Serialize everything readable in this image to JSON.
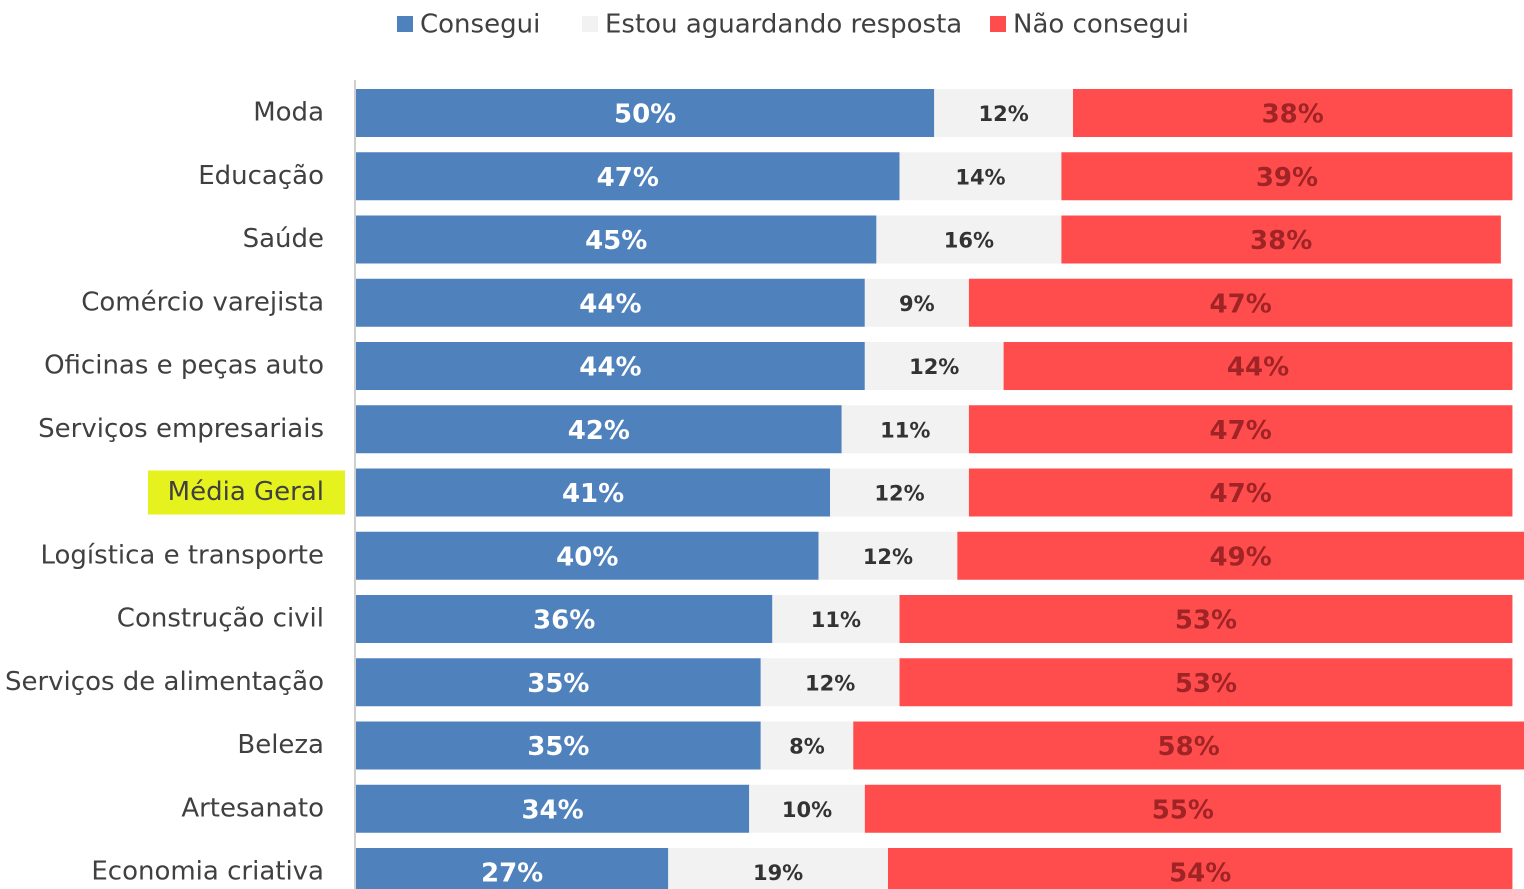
{
  "chart_data": {
    "type": "stacked-barh",
    "categories": [
      "Moda",
      "Educação",
      "Saúde",
      "Comércio varejista",
      "Oficinas e peças auto",
      "Serviços empresariais",
      "Média Geral",
      "Logística e transporte",
      "Construção civil",
      "Serviços de alimentação",
      "Beleza",
      "Artesanato",
      "Economia criativa"
    ],
    "series": [
      {
        "name": "Consegui",
        "color": "#4f81bd",
        "label_color": "#ffffff",
        "values": [
          50,
          47,
          45,
          44,
          44,
          42,
          41,
          40,
          36,
          35,
          35,
          34,
          27
        ],
        "value_labels": [
          "50%",
          "47%",
          "45%",
          "44%",
          "44%",
          "42%",
          "41%",
          "40%",
          "36%",
          "35%",
          "35%",
          "34%",
          "27%"
        ]
      },
      {
        "name": "Estou aguardando resposta",
        "color": "#f2f2f2",
        "label_color": "#333333",
        "values": [
          12,
          14,
          16,
          9,
          12,
          11,
          12,
          12,
          11,
          12,
          8,
          10,
          19
        ],
        "value_labels": [
          "12%",
          "14%",
          "16%",
          "9%",
          "12%",
          "11%",
          "12%",
          "12%",
          "11%",
          "12%",
          "8%",
          "10%",
          "19%"
        ]
      },
      {
        "name": "Não consegui",
        "color": "#ff4d4d",
        "label_color": "#a02326",
        "values": [
          38,
          39,
          38,
          47,
          44,
          47,
          47,
          49,
          53,
          53,
          58,
          55,
          54
        ],
        "value_labels": [
          "38%",
          "39%",
          "38%",
          "47%",
          "44%",
          "47%",
          "47%",
          "49%",
          "53%",
          "53%",
          "58%",
          "55%",
          "54%"
        ]
      }
    ],
    "xlim": [
      0,
      101
    ],
    "highlight": {
      "category": 6,
      "color": "#e6f21e"
    },
    "legend": "top"
  }
}
